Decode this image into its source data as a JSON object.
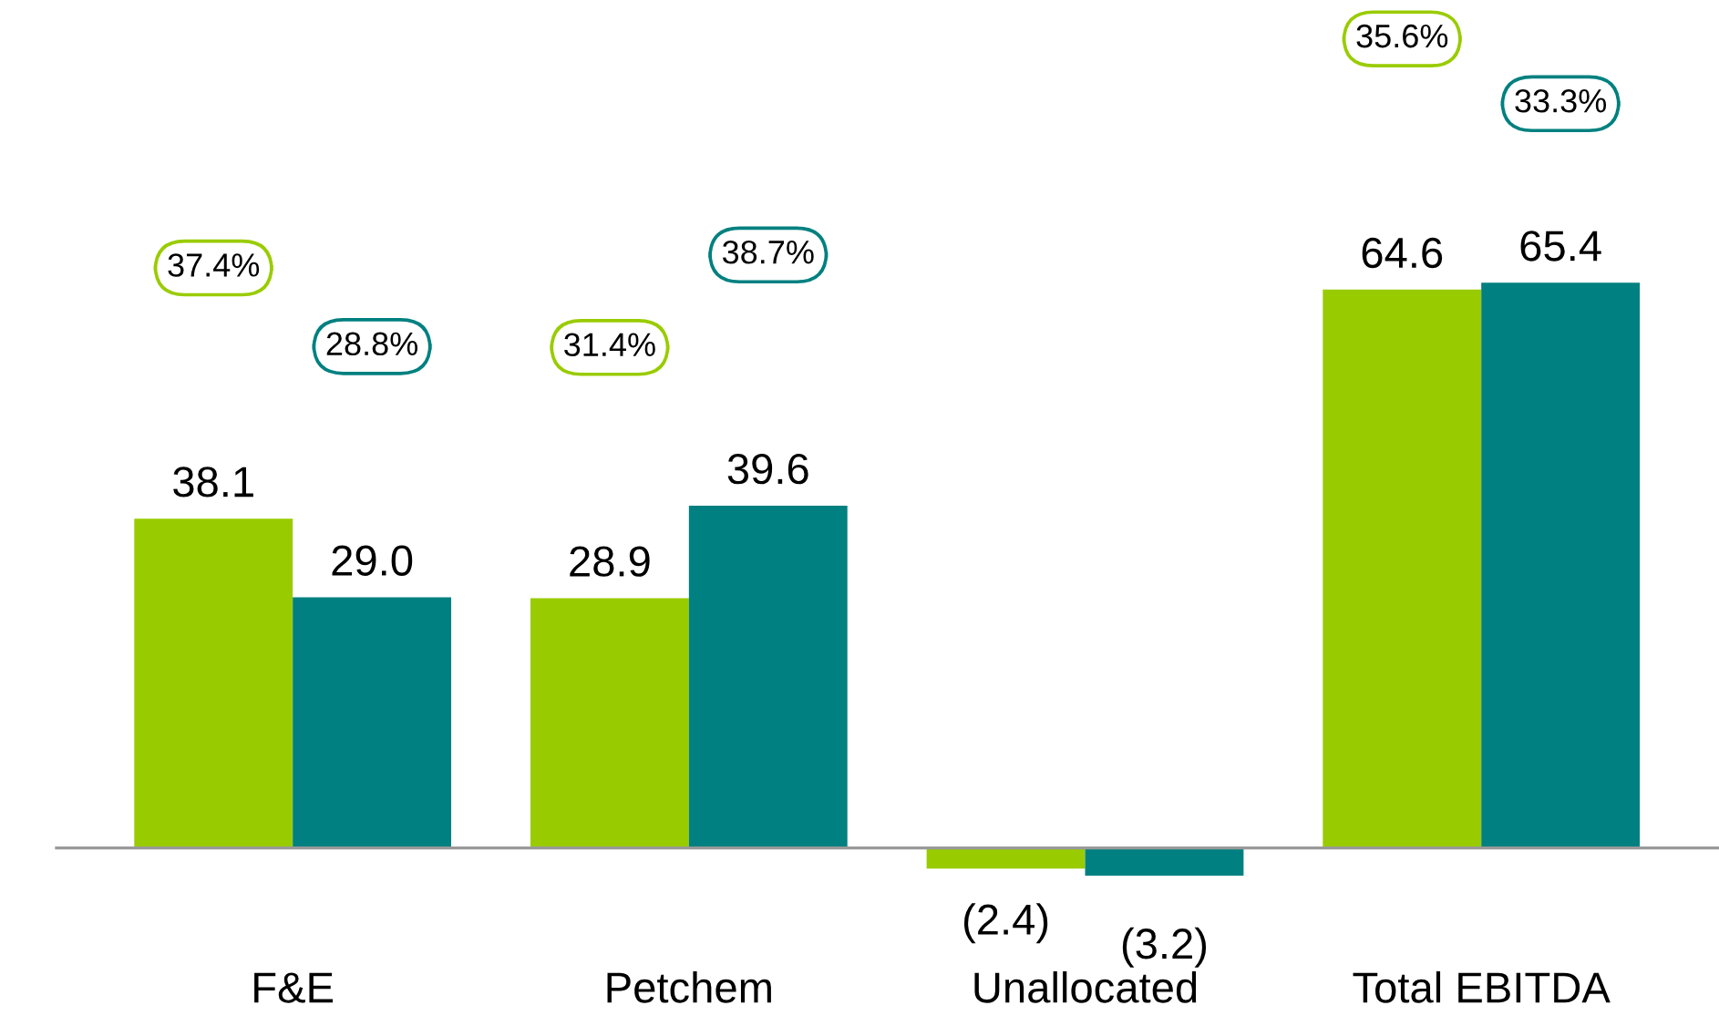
{
  "chart_data": {
    "type": "bar",
    "categories": [
      "F&E",
      "Petchem",
      "Unallocated",
      "Total EBITDA"
    ],
    "series": [
      {
        "color": "#99cc00",
        "values": [
          38.1,
          28.9,
          -2.4,
          64.6
        ],
        "value_labels": [
          "38.1",
          "28.9",
          "(2.4)",
          "64.6"
        ]
      },
      {
        "color": "#008080",
        "values": [
          29.0,
          39.6,
          -3.2,
          65.4
        ],
        "value_labels": [
          "29.0",
          "39.6",
          "(3.2)",
          "65.4"
        ]
      }
    ],
    "annotations": [
      "37.4%",
      "28.8%",
      "31.4%",
      "38.7%",
      "35.6%",
      "33.3%"
    ],
    "grid": false,
    "legend": false
  }
}
